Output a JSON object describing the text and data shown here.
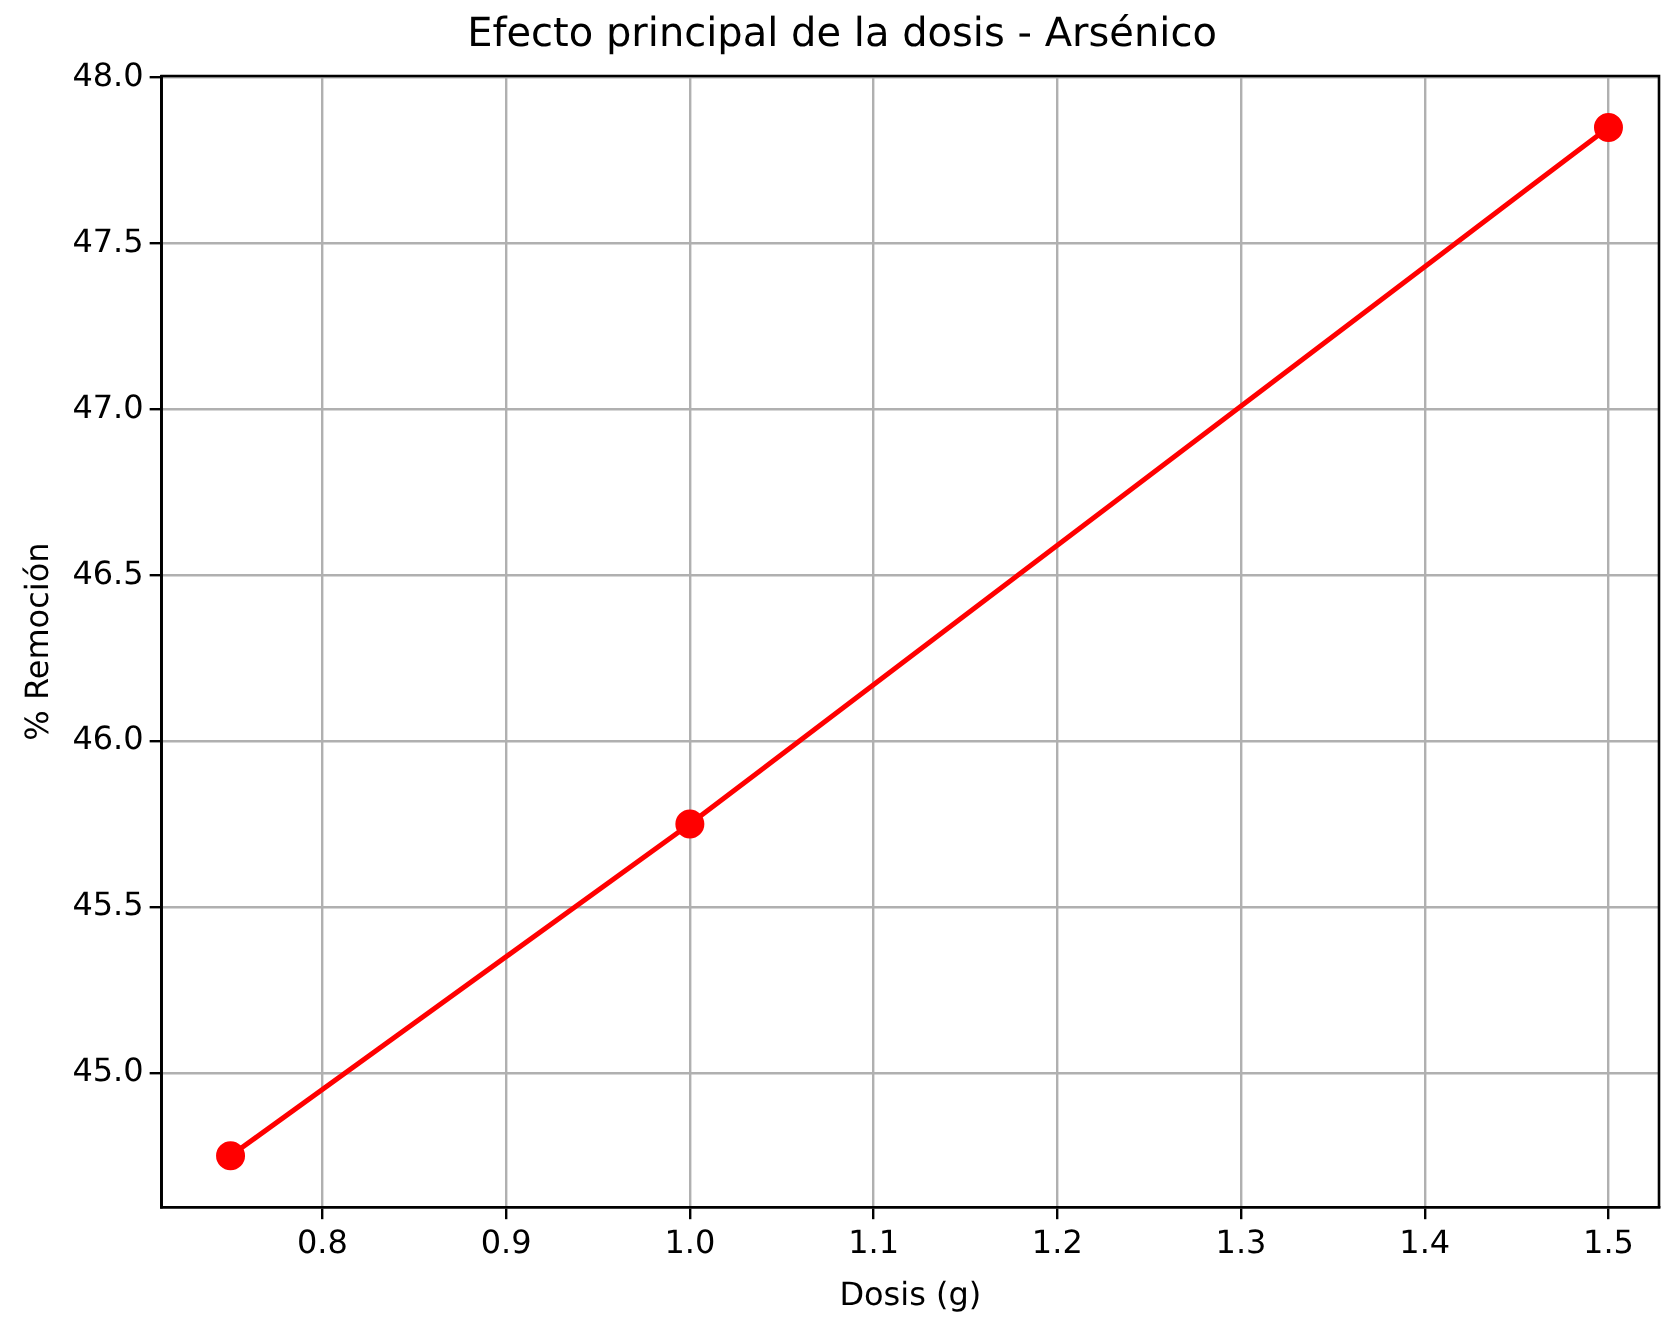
{
  "chart_data": {
    "type": "line",
    "title": "Efecto principal de la dosis - Arsénico",
    "xlabel": "Dosis (g)",
    "ylabel": "% Remoción",
    "x": [
      0.75,
      1.0,
      1.5
    ],
    "values": [
      44.75,
      45.75,
      47.85
    ],
    "color": "#ff0000",
    "marker": "circle",
    "grid": true,
    "xlim": [
      0.7125,
      1.5275
    ],
    "ylim": [
      44.595,
      48.005
    ],
    "xticks": [
      0.8,
      0.9,
      {
        "value": 1.0,
        "label": "1.0"
      },
      1.1,
      1.2,
      1.3,
      1.4,
      1.5
    ],
    "yticks": [
      {
        "value": 45,
        "label": "45.0"
      },
      45.5,
      {
        "value": 46,
        "label": "46.0"
      },
      46.5,
      {
        "value": 47,
        "label": "47.0"
      },
      47.5,
      {
        "value": 48,
        "label": "48.0"
      }
    ]
  }
}
